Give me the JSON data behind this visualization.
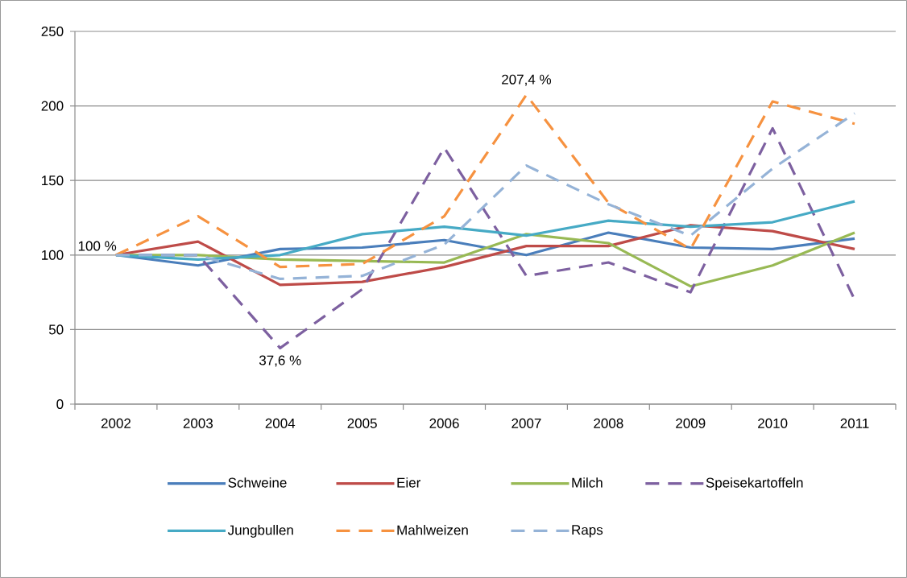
{
  "chart_data": {
    "type": "line",
    "categories": [
      "2002",
      "2003",
      "2004",
      "2005",
      "2006",
      "2007",
      "2008",
      "2009",
      "2010",
      "2011"
    ],
    "series": [
      {
        "name": "Schweine",
        "color": "#4a7ebb",
        "line_style": "solid",
        "values": [
          100,
          93,
          104,
          105,
          110,
          100,
          115,
          105,
          104,
          111
        ]
      },
      {
        "name": "Eier",
        "color": "#be4b48",
        "line_style": "solid",
        "values": [
          100,
          109,
          80,
          82,
          92,
          106,
          106,
          120,
          116,
          104
        ]
      },
      {
        "name": "Milch",
        "color": "#98b954",
        "line_style": "solid",
        "values": [
          100,
          100,
          97,
          96,
          95,
          114,
          108,
          79,
          93,
          115
        ]
      },
      {
        "name": "Speisekartoffeln",
        "color": "#7d60a0",
        "line_style": "dashed",
        "values": [
          100,
          100,
          37.6,
          77,
          172,
          86,
          95,
          75,
          185,
          70
        ]
      },
      {
        "name": "Jungbullen",
        "color": "#46aac5",
        "line_style": "solid",
        "values": [
          100,
          97,
          100,
          114,
          119,
          113,
          123,
          119,
          122,
          136
        ]
      },
      {
        "name": "Mahlweizen",
        "color": "#f69240",
        "line_style": "dashed",
        "values": [
          100,
          126,
          92,
          94,
          126,
          207.4,
          135,
          104,
          203,
          188
        ]
      },
      {
        "name": "Raps",
        "color": "#95b3d7",
        "line_style": "dashed",
        "values": [
          100,
          100,
          84,
          86,
          107,
          160,
          134,
          113,
          158,
          195
        ]
      }
    ],
    "ylim": [
      0,
      250
    ],
    "yticks": [
      0,
      50,
      100,
      150,
      200,
      250
    ],
    "grid": "y",
    "legend": "bottom",
    "annotations": [
      {
        "text": "100 %",
        "x": "2002",
        "y": 100
      },
      {
        "text": "37,6 %",
        "x": "2004",
        "y": 37.6
      },
      {
        "text": "207,4 %",
        "x": "2007",
        "y": 207.4
      }
    ]
  }
}
